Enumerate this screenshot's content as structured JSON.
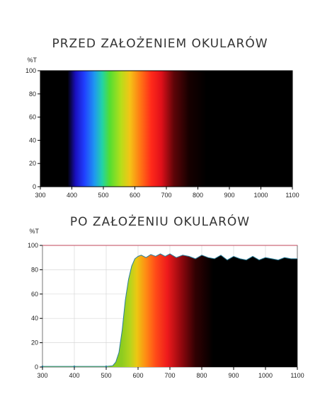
{
  "chart_data": [
    {
      "type": "area",
      "title": "PRZED ZAŁOŻENIEM OKULARÓW",
      "ylabel": "%T",
      "xlabel": "",
      "xlim": [
        300,
        1100
      ],
      "ylim": [
        0,
        100
      ],
      "xticks": [
        "300",
        "400",
        "500",
        "600",
        "700",
        "800",
        "900",
        "1000",
        "1100"
      ],
      "yticks": [
        "0",
        "20",
        "40",
        "60",
        "80",
        "100"
      ],
      "grid": false,
      "series": [
        {
          "x": [
            300,
            1100
          ],
          "y": [
            100,
            100
          ]
        }
      ]
    },
    {
      "type": "line",
      "title": "PO ZAŁOŻENIU OKULARÓW",
      "ylabel": "%T",
      "xlabel": "",
      "xlim": [
        300,
        1100
      ],
      "ylim": [
        0,
        100
      ],
      "xticks": [
        "300",
        "400",
        "500",
        "600",
        "700",
        "800",
        "900",
        "1000",
        "1100"
      ],
      "yticks": [
        "0",
        "20",
        "40",
        "60",
        "80",
        "100"
      ],
      "grid": true,
      "series": [
        {
          "x": [
            300,
            400,
            500,
            520,
            530,
            540,
            550,
            560,
            570,
            580,
            590,
            600,
            610,
            625,
            640,
            655,
            670,
            685,
            700,
            720,
            740,
            760,
            780,
            800,
            820,
            840,
            860,
            880,
            900,
            920,
            940,
            960,
            980,
            1000,
            1020,
            1040,
            1060,
            1080,
            1100
          ],
          "y": [
            0.5,
            0.5,
            0.5,
            1,
            4,
            12,
            30,
            55,
            72,
            83,
            89,
            91,
            92,
            90,
            92.5,
            91,
            93,
            91,
            93,
            90,
            92,
            91,
            89,
            92,
            90,
            89,
            92,
            88,
            91,
            89,
            88,
            91,
            88,
            90,
            89,
            88,
            90,
            89,
            89
          ]
        },
        {
          "x": [
            300,
            1100
          ],
          "y": [
            100,
            100
          ]
        }
      ]
    }
  ]
}
